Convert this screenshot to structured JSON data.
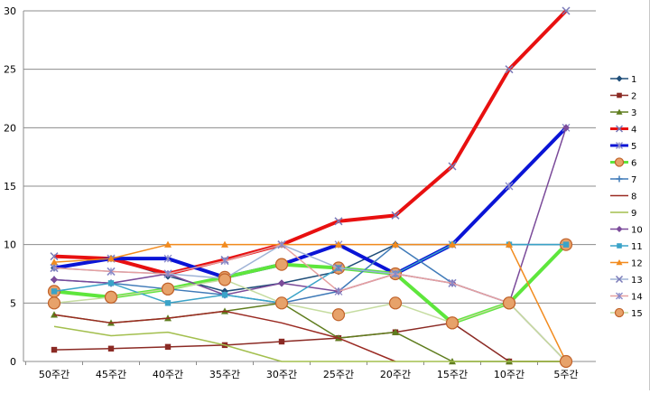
{
  "chart_data": {
    "type": "line",
    "categories": [
      "50주간",
      "45주간",
      "40주간",
      "35주간",
      "30주간",
      "25주간",
      "20주간",
      "15주간",
      "10주간",
      "5주간"
    ],
    "ylim": [
      0,
      30
    ],
    "yticks": [
      "0",
      "5",
      "10",
      "15",
      "20",
      "25",
      "30"
    ],
    "grid": true,
    "legend_position": "right",
    "series": [
      {
        "name": "1",
        "color": "#1f4e79",
        "marker": "diamond",
        "values": [
          8.0,
          8.8,
          7.3,
          6.0,
          6.7,
          7.7,
          10.0,
          10.0,
          10.0,
          10.0
        ]
      },
      {
        "name": "2",
        "color": "#8b2a24",
        "marker": "square",
        "values": [
          1.0,
          1.1,
          1.25,
          1.4,
          1.7,
          2.0,
          2.5,
          3.3,
          0.0,
          0.0
        ]
      },
      {
        "name": "3",
        "color": "#5f7d1e",
        "marker": "triangle",
        "values": [
          4.0,
          3.3,
          3.7,
          4.3,
          5.0,
          2.0,
          2.5,
          0.0,
          0.0,
          0.0
        ]
      },
      {
        "name": "4",
        "color": "#e81010",
        "marker": "x",
        "values": [
          9.0,
          8.8,
          7.5,
          8.7,
          10.0,
          12.0,
          12.5,
          16.7,
          25.0,
          30.0
        ]
      },
      {
        "name": "5",
        "color": "#0a14d6",
        "marker": "star",
        "values": [
          8.0,
          8.8,
          8.8,
          7.2,
          8.3,
          10.0,
          7.5,
          10.0,
          15.0,
          20.0
        ]
      },
      {
        "name": "6",
        "color": "#5ee63c",
        "marker": "circle",
        "values": [
          6.0,
          5.5,
          6.2,
          7.2,
          8.3,
          8.0,
          7.5,
          3.3,
          5.0,
          10.0
        ]
      },
      {
        "name": "7",
        "color": "#3f7ab8",
        "marker": "plus",
        "values": [
          7.0,
          6.7,
          6.2,
          5.7,
          5.0,
          6.0,
          10.0,
          6.7,
          5.0,
          0.0
        ]
      },
      {
        "name": "8",
        "color": "#9a2a22",
        "marker": "none",
        "values": [
          4.0,
          3.3,
          3.7,
          4.3,
          3.3,
          2.0,
          0.0,
          null,
          null,
          null
        ]
      },
      {
        "name": "9",
        "color": "#a3bf4e",
        "marker": "none",
        "values": [
          3.0,
          2.2,
          2.5,
          1.4,
          0.0,
          0.0,
          0.0,
          0.0,
          0.0,
          0.0
        ]
      },
      {
        "name": "10",
        "color": "#7b4b9a",
        "marker": "diamond",
        "values": [
          7.0,
          6.7,
          7.5,
          5.7,
          6.7,
          6.0,
          7.5,
          6.7,
          5.0,
          20.0
        ]
      },
      {
        "name": "11",
        "color": "#3aa3c8",
        "marker": "square",
        "values": [
          6.0,
          6.7,
          5.0,
          5.7,
          5.0,
          8.0,
          7.5,
          10.0,
          10.0,
          10.0
        ]
      },
      {
        "name": "12",
        "color": "#f28b1e",
        "marker": "triangle",
        "values": [
          8.5,
          8.8,
          10.0,
          10.0,
          10.0,
          10.0,
          10.0,
          10.0,
          10.0,
          0.0
        ]
      },
      {
        "name": "13",
        "color": "#9fb3d6",
        "marker": "x",
        "values": [
          8.0,
          7.7,
          7.5,
          7.1,
          10.0,
          8.0,
          7.5,
          6.7,
          5.0,
          0.0
        ]
      },
      {
        "name": "14",
        "color": "#e6a0a0",
        "marker": "star",
        "values": [
          8.0,
          7.7,
          7.5,
          8.6,
          10.0,
          6.0,
          7.5,
          6.7,
          5.0,
          0.0
        ]
      },
      {
        "name": "15",
        "color": "#c5dca0",
        "marker": "circle",
        "values": [
          5.0,
          5.5,
          6.2,
          7.0,
          5.0,
          4.0,
          5.0,
          3.3,
          5.0,
          0.0
        ]
      }
    ]
  }
}
